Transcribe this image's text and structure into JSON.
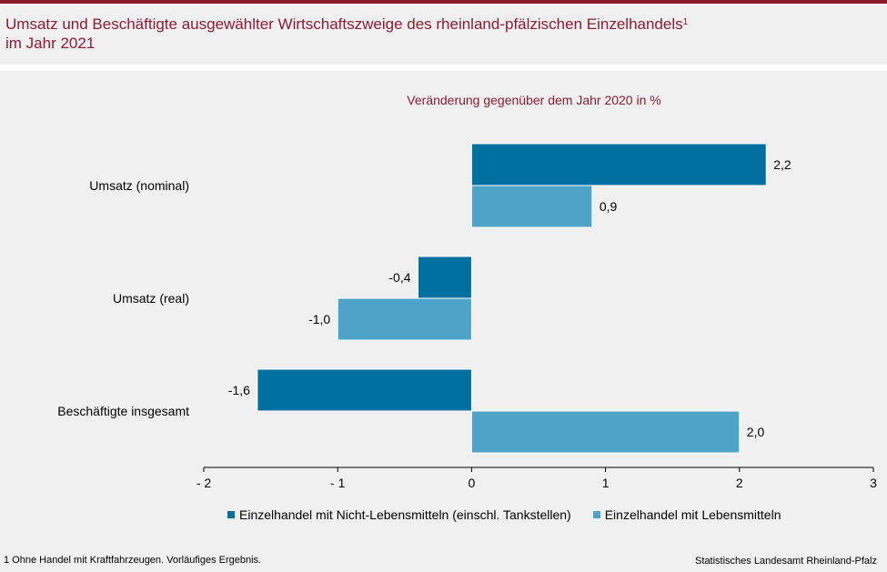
{
  "title_line1": "Umsatz und Beschäftigte ausgewählter Wirtschaftszweige des rheinland-pfälzischen Einzelhandels",
  "title_sup": "1",
  "title_line2": "im Jahr 2021",
  "footnote": "1 Ohne Handel mit Kraftfahrzeugen. Vorläufiges Ergebnis.",
  "source": "Statistisches Landesamt Rheinland-Pfalz",
  "colors": {
    "series_dark": "#0070a0",
    "series_light": "#4ea3c8",
    "title": "#8e1b32"
  },
  "chart_data": {
    "type": "bar",
    "orientation": "horizontal",
    "title": "Veränderung gegenüber dem Jahr 2020 in %",
    "categories": [
      "Umsatz (nominal)",
      "Umsatz (real)",
      "Beschäftigte insgesamt"
    ],
    "series": [
      {
        "name": "Einzelhandel mit Nicht-Lebensmitteln (einschl. Tankstellen)",
        "values": [
          2.2,
          -0.4,
          -1.6
        ],
        "labels": [
          "2,2",
          "-0,4",
          "-1,6"
        ]
      },
      {
        "name": "Einzelhandel mit Lebensmitteln",
        "values": [
          0.9,
          -1.0,
          2.0
        ],
        "labels": [
          "0,9",
          "-1,0",
          "2,0"
        ]
      }
    ],
    "xlim": [
      -2,
      3
    ],
    "xticks": [
      -2,
      -1,
      0,
      1,
      2,
      3
    ],
    "xtick_labels": [
      "- 2",
      "- 1",
      "0",
      "1",
      "2",
      "3"
    ],
    "grid": false,
    "legend": "bottom"
  }
}
